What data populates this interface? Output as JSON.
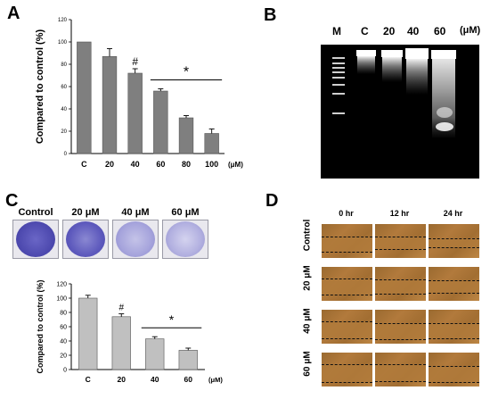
{
  "panels": {
    "a": "A",
    "b": "B",
    "c": "C",
    "d": "D"
  },
  "chart_data": [
    {
      "type": "bar",
      "panel": "A",
      "categories": [
        "C",
        "20",
        "40",
        "60",
        "80",
        "100"
      ],
      "values": [
        100,
        87,
        72,
        56,
        32,
        18
      ],
      "errors": [
        0,
        7,
        4,
        2,
        2,
        4
      ],
      "ylabel": "Compared to control (%)",
      "xunit": "(μM)",
      "ylim": [
        0,
        120
      ],
      "yticks": [
        "0",
        "20",
        "40",
        "60",
        "80",
        "100",
        "120"
      ],
      "annotations": [
        {
          "symbol": "#",
          "category": "40"
        },
        {
          "symbol": "*",
          "categories": [
            "60",
            "80",
            "100"
          ]
        }
      ],
      "bar_color": "#7f7f7f"
    },
    {
      "type": "bar",
      "panel": "C",
      "categories": [
        "C",
        "20",
        "40",
        "60"
      ],
      "values": [
        100,
        74,
        43,
        27
      ],
      "errors": [
        4,
        4,
        3,
        3
      ],
      "ylabel": "Compared to control (%)",
      "xunit": "(μM)",
      "ylim": [
        0,
        120
      ],
      "yticks": [
        "0",
        "20",
        "40",
        "60",
        "80",
        "100",
        "120"
      ],
      "annotations": [
        {
          "symbol": "#",
          "category": "20"
        },
        {
          "symbol": "*",
          "categories": [
            "40",
            "60"
          ]
        }
      ],
      "bar_color": "#c0c0c0"
    }
  ],
  "panel_b": {
    "lanes": [
      "M",
      "C",
      "20",
      "40",
      "60"
    ],
    "unit": "(μM)"
  },
  "panel_c_wells": {
    "labels": [
      "Control",
      "20 μM",
      "40 μM",
      "60 μM"
    ],
    "stain_colors": [
      "#5a56b8",
      "#6a66c2",
      "#9c9ad6",
      "#a8a6dc"
    ]
  },
  "panel_d": {
    "columns": [
      "0 hr",
      "12 hr",
      "24 hr"
    ],
    "rows": [
      "Control",
      "20 μM",
      "40 μM",
      "60 μM"
    ]
  }
}
